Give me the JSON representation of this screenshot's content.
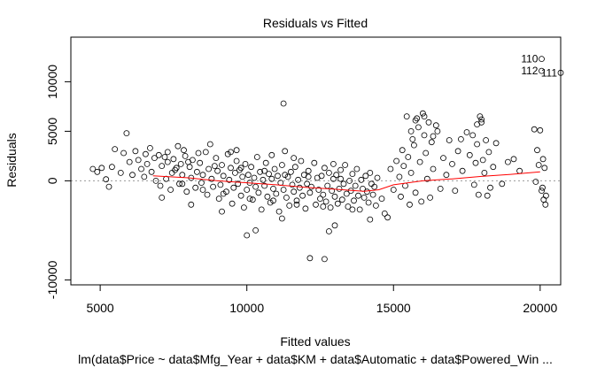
{
  "chart_data": {
    "type": "scatter",
    "title": "Residuals vs Fitted",
    "xlabel": "Fitted values",
    "ylabel": "Residuals",
    "subtitle": "lm(data$Price ~ data$Mfg_Year + data$KM + data$Automatic + data$Powered_Win ...",
    "xlim": [
      4000,
      20700
    ],
    "ylim": [
      -10500,
      14500
    ],
    "x_ticks": [
      5000,
      10000,
      15000,
      20000
    ],
    "x_tick_labels": [
      "5000",
      "10000",
      "15000",
      "20000"
    ],
    "y_ticks": [
      -10000,
      0,
      5000,
      10000
    ],
    "y_tick_labels": [
      "-10000",
      "0",
      "5000",
      "10000"
    ],
    "zero_line": 0,
    "point_labels": [
      {
        "text": "110",
        "x": 20050,
        "y": 12300
      },
      {
        "text": "112",
        "x": 20050,
        "y": 11100
      },
      {
        "text": "111",
        "x": 20700,
        "y": 10900
      }
    ],
    "smooth_line": {
      "color": "#ff0000",
      "x": [
        6800,
        8000,
        9000,
        10000,
        11000,
        12000,
        13000,
        14000,
        14500,
        15000,
        16000,
        17000,
        18000,
        19000,
        20000
      ],
      "y": [
        500,
        300,
        0,
        -200,
        -400,
        -650,
        -850,
        -1050,
        -900,
        -400,
        0,
        200,
        450,
        650,
        900
      ]
    },
    "points": [
      [
        4750,
        1200
      ],
      [
        4900,
        900
      ],
      [
        5050,
        1300
      ],
      [
        5200,
        150
      ],
      [
        5300,
        -600
      ],
      [
        5400,
        1400
      ],
      [
        5500,
        3200
      ],
      [
        5700,
        800
      ],
      [
        5800,
        2800
      ],
      [
        5900,
        4800
      ],
      [
        6000,
        1900
      ],
      [
        6100,
        600
      ],
      [
        6200,
        3000
      ],
      [
        6300,
        2100
      ],
      [
        6400,
        1200
      ],
      [
        6500,
        400
      ],
      [
        6550,
        2700
      ],
      [
        6600,
        1700
      ],
      [
        6700,
        3300
      ],
      [
        6750,
        900
      ],
      [
        6850,
        2300
      ],
      [
        6900,
        0
      ],
      [
        7000,
        2600
      ],
      [
        7050,
        -500
      ],
      [
        7100,
        1500
      ],
      [
        7200,
        2400
      ],
      [
        7250,
        200
      ],
      [
        7300,
        1900
      ],
      [
        7400,
        -900
      ],
      [
        7450,
        800
      ],
      [
        7500,
        2200
      ],
      [
        7550,
        1100
      ],
      [
        7650,
        3500
      ],
      [
        7700,
        -300
      ],
      [
        7750,
        1700
      ],
      [
        7800,
        600
      ],
      [
        7900,
        2500
      ],
      [
        7950,
        -1100
      ],
      [
        8050,
        1400
      ],
      [
        8100,
        300
      ],
      [
        8150,
        2100
      ],
      [
        8250,
        -700
      ],
      [
        8300,
        900
      ],
      [
        8400,
        1800
      ],
      [
        8450,
        -200
      ],
      [
        8500,
        600
      ],
      [
        8600,
        2900
      ],
      [
        8650,
        -1400
      ],
      [
        8700,
        1200
      ],
      [
        8750,
        3700
      ],
      [
        8800,
        200
      ],
      [
        8850,
        -600
      ],
      [
        8950,
        2300
      ],
      [
        9000,
        1000
      ],
      [
        9050,
        -1800
      ],
      [
        9100,
        -400
      ],
      [
        9150,
        1600
      ],
      [
        9200,
        500
      ],
      [
        9300,
        -1100
      ],
      [
        9350,
        2700
      ],
      [
        9400,
        100
      ],
      [
        9450,
        1300
      ],
      [
        9500,
        -2300
      ],
      [
        9550,
        -700
      ],
      [
        9600,
        800
      ],
      [
        9650,
        2000
      ],
      [
        9700,
        -300
      ],
      [
        9750,
        1100
      ],
      [
        9800,
        -1500
      ],
      [
        9850,
        400
      ],
      [
        9900,
        -2700
      ],
      [
        9950,
        1700
      ],
      [
        10000,
        -900
      ],
      [
        10050,
        600
      ],
      [
        10100,
        -200
      ],
      [
        10150,
        1400
      ],
      [
        10200,
        -1900
      ],
      [
        10250,
        300
      ],
      [
        10300,
        -600
      ],
      [
        10350,
        2400
      ],
      [
        10400,
        -1200
      ],
      [
        10450,
        900
      ],
      [
        10500,
        -2900
      ],
      [
        10550,
        100
      ],
      [
        10600,
        -500
      ],
      [
        10650,
        1800
      ],
      [
        10700,
        -1600
      ],
      [
        10750,
        700
      ],
      [
        10800,
        -2200
      ],
      [
        10850,
        200
      ],
      [
        10900,
        -800
      ],
      [
        10950,
        1200
      ],
      [
        11000,
        -1300
      ],
      [
        11050,
        500
      ],
      [
        11100,
        -3100
      ],
      [
        11150,
        -200
      ],
      [
        11200,
        1600
      ],
      [
        11250,
        -900
      ],
      [
        11300,
        3000
      ],
      [
        11350,
        -1700
      ],
      [
        11400,
        400
      ],
      [
        11450,
        -2500
      ],
      [
        11500,
        900
      ],
      [
        11550,
        -400
      ],
      [
        11600,
        -1100
      ],
      [
        11650,
        1400
      ],
      [
        11700,
        -2000
      ],
      [
        11750,
        100
      ],
      [
        11800,
        -700
      ],
      [
        11850,
        2000
      ],
      [
        11900,
        -1500
      ],
      [
        11950,
        600
      ],
      [
        12000,
        -2800
      ],
      [
        12050,
        -300
      ],
      [
        12100,
        1000
      ],
      [
        12150,
        -1200
      ],
      [
        12200,
        -600
      ],
      [
        12300,
        1800
      ],
      [
        12350,
        -2400
      ],
      [
        12400,
        300
      ],
      [
        12450,
        -900
      ],
      [
        12500,
        -1800
      ],
      [
        12550,
        500
      ],
      [
        12600,
        -1400
      ],
      [
        12650,
        1300
      ],
      [
        12700,
        -2100
      ],
      [
        12750,
        -500
      ],
      [
        12800,
        800
      ],
      [
        12850,
        -2700
      ],
      [
        12900,
        -1000
      ],
      [
        12950,
        200
      ],
      [
        13000,
        -1600
      ],
      [
        13050,
        600
      ],
      [
        13100,
        -2300
      ],
      [
        13150,
        -800
      ],
      [
        13200,
        1100
      ],
      [
        13250,
        -1900
      ],
      [
        13300,
        -300
      ],
      [
        13350,
        1600
      ],
      [
        13400,
        -1300
      ],
      [
        13450,
        -2600
      ],
      [
        13500,
        0
      ],
      [
        13550,
        -1000
      ],
      [
        13600,
        700
      ],
      [
        13650,
        -2000
      ],
      [
        13700,
        -500
      ],
      [
        13750,
        1200
      ],
      [
        13800,
        -1500
      ],
      [
        13850,
        -2900
      ],
      [
        13900,
        100
      ],
      [
        13950,
        -800
      ],
      [
        14000,
        -1700
      ],
      [
        14050,
        500
      ],
      [
        14100,
        -1100
      ],
      [
        14150,
        -2200
      ],
      [
        14200,
        800
      ],
      [
        14250,
        -300
      ],
      [
        14300,
        -1400
      ],
      [
        14350,
        -600
      ],
      [
        14400,
        -2500
      ],
      [
        14450,
        300
      ],
      [
        14600,
        -1800
      ],
      [
        14800,
        -3700
      ],
      [
        14900,
        1200
      ],
      [
        15000,
        -900
      ],
      [
        15100,
        2000
      ],
      [
        15200,
        400
      ],
      [
        15250,
        -1600
      ],
      [
        15300,
        3100
      ],
      [
        15350,
        1500
      ],
      [
        15400,
        -500
      ],
      [
        15450,
        6500
      ],
      [
        15500,
        2400
      ],
      [
        15550,
        -2400
      ],
      [
        15600,
        800
      ],
      [
        15650,
        4200
      ],
      [
        15700,
        3600
      ],
      [
        15750,
        -1200
      ],
      [
        15800,
        6300
      ],
      [
        15850,
        5400
      ],
      [
        15900,
        1900
      ],
      [
        15950,
        -2100
      ],
      [
        16000,
        6800
      ],
      [
        16050,
        4600
      ],
      [
        16100,
        2800
      ],
      [
        16150,
        200
      ],
      [
        16200,
        5900
      ],
      [
        16250,
        -1700
      ],
      [
        16300,
        3900
      ],
      [
        16350,
        1200
      ],
      [
        16450,
        5600
      ],
      [
        16600,
        -800
      ],
      [
        16700,
        2300
      ],
      [
        16800,
        600
      ],
      [
        16900,
        4100
      ],
      [
        17000,
        1700
      ],
      [
        17100,
        -1000
      ],
      [
        17200,
        3000
      ],
      [
        17350,
        1000
      ],
      [
        17500,
        4900
      ],
      [
        17600,
        2600
      ],
      [
        17700,
        4600
      ],
      [
        17750,
        -400
      ],
      [
        17800,
        1800
      ],
      [
        17850,
        3700
      ],
      [
        17900,
        -1400
      ],
      [
        17950,
        6500
      ],
      [
        18000,
        5900
      ],
      [
        18050,
        2100
      ],
      [
        18100,
        800
      ],
      [
        18150,
        4100
      ],
      [
        18200,
        -1500
      ],
      [
        18250,
        2900
      ],
      [
        18300,
        -700
      ],
      [
        18400,
        1400
      ],
      [
        18500,
        3800
      ],
      [
        18700,
        -300
      ],
      [
        18900,
        1900
      ],
      [
        19100,
        2200
      ],
      [
        19300,
        1000
      ],
      [
        19800,
        5200
      ],
      [
        19850,
        -100
      ],
      [
        19900,
        3100
      ],
      [
        19950,
        1600
      ],
      [
        20000,
        5100
      ],
      [
        20050,
        -1000
      ],
      [
        20080,
        -700
      ],
      [
        20100,
        2200
      ],
      [
        20120,
        -1900
      ],
      [
        20150,
        1300
      ],
      [
        20180,
        -2400
      ],
      [
        20200,
        -1500
      ],
      [
        20050,
        12300
      ],
      [
        20050,
        11100
      ],
      [
        20700,
        10900
      ],
      [
        11250,
        7800
      ],
      [
        12150,
        -7800
      ],
      [
        12650,
        -7900
      ],
      [
        12800,
        -5100
      ],
      [
        10000,
        -5500
      ],
      [
        10300,
        -5000
      ],
      [
        9150,
        -3100
      ],
      [
        8100,
        -2400
      ],
      [
        7100,
        -1700
      ],
      [
        13000,
        -4500
      ],
      [
        14700,
        -3300
      ],
      [
        14200,
        -3900
      ],
      [
        11200,
        -3800
      ],
      [
        7300,
        2900
      ],
      [
        7850,
        3100
      ],
      [
        8350,
        2800
      ],
      [
        9650,
        3100
      ],
      [
        10850,
        2600
      ],
      [
        11600,
        2300
      ],
      [
        12950,
        1700
      ],
      [
        9450,
        2900
      ],
      [
        15750,
        6100
      ],
      [
        16050,
        6500
      ],
      [
        18000,
        6200
      ],
      [
        17850,
        5700
      ],
      [
        16500,
        5000
      ],
      [
        15600,
        5000
      ],
      [
        16350,
        4500
      ],
      [
        17300,
        4200
      ],
      [
        7600,
        1300
      ],
      [
        8000,
        1900
      ],
      [
        8900,
        1500
      ],
      [
        9800,
        1300
      ],
      [
        10600,
        1000
      ],
      [
        11300,
        600
      ],
      [
        12100,
        400
      ],
      [
        13200,
        200
      ],
      [
        7800,
        -300
      ],
      [
        8500,
        -900
      ],
      [
        9200,
        -1300
      ],
      [
        10100,
        -1800
      ],
      [
        10900,
        -2000
      ],
      [
        11700,
        -2400
      ],
      [
        12600,
        -2600
      ],
      [
        13600,
        -2900
      ]
    ]
  }
}
